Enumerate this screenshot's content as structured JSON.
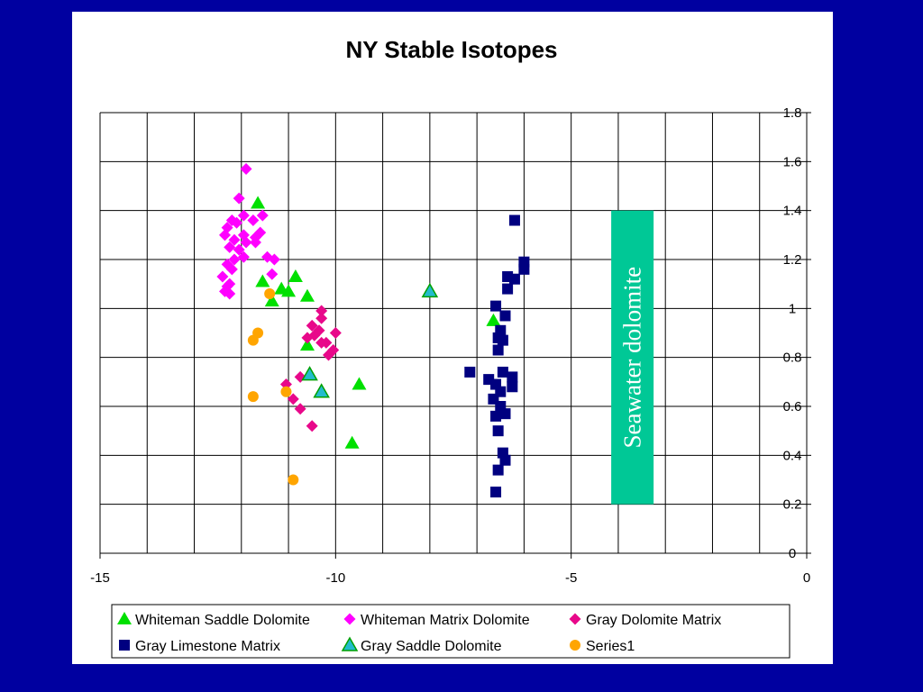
{
  "chart_data": {
    "type": "scatter",
    "title": "NY Stable Isotopes",
    "xlabel": "",
    "ylabel": "",
    "xlim": [
      -15,
      0
    ],
    "ylim": [
      0,
      1.8
    ],
    "xticks": [
      -15,
      -10,
      -5,
      0
    ],
    "yticks": [
      0,
      0.2,
      0.4,
      0.6,
      0.8,
      1,
      1.2,
      1.4,
      1.6,
      1.8
    ],
    "x_tick_labels": [
      "-15",
      "-10",
      "-5",
      "0"
    ],
    "y_tick_labels": [
      "0",
      "0.2",
      "0.4",
      "0.6",
      "0.8",
      "1",
      "1.2",
      "1.4",
      "1.6",
      "1.8"
    ],
    "x_grid_step": 1,
    "y_grid_step": 0.2,
    "grid": true,
    "legend_position": "bottom",
    "annotation": {
      "text": "Seawater dolomite",
      "x_range": [
        -4.15,
        -3.25
      ],
      "y_range": [
        0.2,
        1.4
      ],
      "color": "#00c896"
    },
    "series": [
      {
        "name": "Whiteman Saddle Dolomite",
        "marker": "triangle",
        "color": "#00e000",
        "points": [
          [
            -11.65,
            1.43
          ],
          [
            -11.55,
            1.11
          ],
          [
            -11.35,
            1.03
          ],
          [
            -11.15,
            1.08
          ],
          [
            -11.0,
            1.07
          ],
          [
            -10.85,
            1.13
          ],
          [
            -10.6,
            1.05
          ],
          [
            -10.6,
            0.85
          ],
          [
            -9.65,
            0.45
          ],
          [
            -9.5,
            0.69
          ],
          [
            -6.65,
            0.95
          ]
        ]
      },
      {
        "name": "Whiteman Matrix Dolomite",
        "marker": "diamond",
        "color": "#ff00ff",
        "points": [
          [
            -11.9,
            1.57
          ],
          [
            -12.05,
            1.45
          ],
          [
            -12.2,
            1.36
          ],
          [
            -12.3,
            1.33
          ],
          [
            -12.1,
            1.35
          ],
          [
            -11.95,
            1.38
          ],
          [
            -11.75,
            1.36
          ],
          [
            -11.55,
            1.38
          ],
          [
            -12.35,
            1.3
          ],
          [
            -12.15,
            1.28
          ],
          [
            -11.95,
            1.3
          ],
          [
            -11.7,
            1.29
          ],
          [
            -11.6,
            1.31
          ],
          [
            -12.25,
            1.25
          ],
          [
            -12.05,
            1.24
          ],
          [
            -11.9,
            1.27
          ],
          [
            -11.7,
            1.27
          ],
          [
            -12.15,
            1.2
          ],
          [
            -11.95,
            1.21
          ],
          [
            -12.3,
            1.18
          ],
          [
            -12.2,
            1.16
          ],
          [
            -11.45,
            1.21
          ],
          [
            -11.3,
            1.2
          ],
          [
            -12.4,
            1.13
          ],
          [
            -12.25,
            1.1
          ],
          [
            -11.35,
            1.14
          ],
          [
            -12.35,
            1.07
          ],
          [
            -12.25,
            1.06
          ],
          [
            -12.3,
            1.09
          ]
        ]
      },
      {
        "name": "Gray Dolomite Matrix",
        "marker": "diamond",
        "color": "#e8088a",
        "points": [
          [
            -10.3,
            0.99
          ],
          [
            -10.3,
            0.96
          ],
          [
            -10.5,
            0.93
          ],
          [
            -10.35,
            0.91
          ],
          [
            -10.0,
            0.9
          ],
          [
            -10.45,
            0.89
          ],
          [
            -10.6,
            0.88
          ],
          [
            -10.2,
            0.86
          ],
          [
            -10.3,
            0.86
          ],
          [
            -10.05,
            0.83
          ],
          [
            -10.15,
            0.81
          ],
          [
            -10.75,
            0.72
          ],
          [
            -11.05,
            0.69
          ],
          [
            -10.9,
            0.63
          ],
          [
            -10.75,
            0.59
          ],
          [
            -10.5,
            0.52
          ]
        ]
      },
      {
        "name": "Gray Limestone Matrix",
        "marker": "square",
        "color": "#000080",
        "points": [
          [
            -6.2,
            1.36
          ],
          [
            -6.0,
            1.19
          ],
          [
            -6.0,
            1.16
          ],
          [
            -6.35,
            1.13
          ],
          [
            -6.2,
            1.12
          ],
          [
            -6.35,
            1.08
          ],
          [
            -6.6,
            1.01
          ],
          [
            -6.4,
            0.97
          ],
          [
            -6.5,
            0.91
          ],
          [
            -6.55,
            0.88
          ],
          [
            -6.45,
            0.87
          ],
          [
            -6.55,
            0.83
          ],
          [
            -7.15,
            0.74
          ],
          [
            -6.45,
            0.74
          ],
          [
            -6.75,
            0.71
          ],
          [
            -6.25,
            0.72
          ],
          [
            -6.6,
            0.69
          ],
          [
            -6.25,
            0.68
          ],
          [
            -6.5,
            0.66
          ],
          [
            -6.65,
            0.63
          ],
          [
            -6.5,
            0.6
          ],
          [
            -6.4,
            0.57
          ],
          [
            -6.6,
            0.56
          ],
          [
            -6.55,
            0.5
          ],
          [
            -6.45,
            0.41
          ],
          [
            -6.4,
            0.38
          ],
          [
            -6.55,
            0.34
          ],
          [
            -6.6,
            0.25
          ]
        ]
      },
      {
        "name": "Gray Saddle Dolomite",
        "marker": "triangle-outlined",
        "color": "#22bbcc",
        "points": [
          [
            -8.0,
            1.07
          ],
          [
            -10.55,
            0.73
          ],
          [
            -10.3,
            0.66
          ]
        ]
      },
      {
        "name": "Series1",
        "marker": "circle",
        "color": "#ffa500",
        "points": [
          [
            -11.4,
            1.06
          ],
          [
            -11.65,
            0.9
          ],
          [
            -11.75,
            0.87
          ],
          [
            -11.75,
            0.64
          ],
          [
            -11.05,
            0.66
          ],
          [
            -10.9,
            0.3
          ]
        ]
      }
    ]
  }
}
